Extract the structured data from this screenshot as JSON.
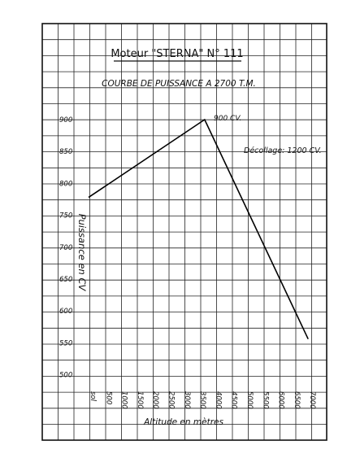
{
  "chart_data": {
    "type": "line",
    "title": "Moteur \"STERNA\" N° 111",
    "subtitle": "COURBE DE PUISSANCE A 2700 T.M.",
    "xlabel": "Altitude en mètres",
    "ylabel": "Puissance en CV",
    "x_tick_labels": [
      "sol",
      "500",
      "1000",
      "1500",
      "2000",
      "2500",
      "3000",
      "3500",
      "4000",
      "4500",
      "5000",
      "5500",
      "6000",
      "6500",
      "7000"
    ],
    "y_tick_labels": [
      "900",
      "850",
      "800",
      "750",
      "700",
      "650",
      "600",
      "550",
      "500"
    ],
    "xlim": [
      0,
      7000
    ],
    "ylim": [
      500,
      900
    ],
    "grid": true,
    "series": [
      {
        "x": [
          0,
          3700,
          7000
        ],
        "y": [
          778,
          900,
          556
        ]
      }
    ],
    "annotations": {
      "peak": "900 CV.",
      "takeoff": "Décollage: 1200 CV."
    }
  }
}
